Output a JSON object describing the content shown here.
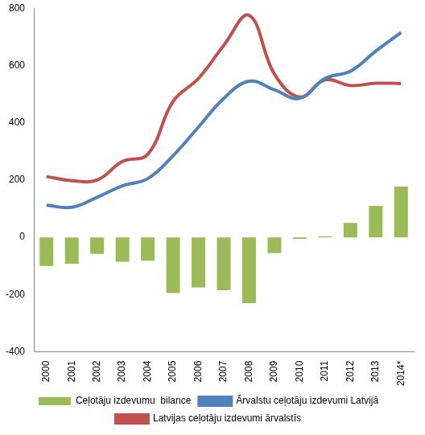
{
  "chart_data": {
    "type": "combo",
    "categories": [
      "2000",
      "2001",
      "2002",
      "2003",
      "2004",
      "2005",
      "2006",
      "2007",
      "2008",
      "2009",
      "2010",
      "2011",
      "2012",
      "2013",
      "2014*"
    ],
    "series": [
      {
        "name": "Ceļotāju izdevumu  bilance",
        "type": "bar",
        "color": "#9bbb59",
        "values": [
          -100,
          -92,
          -58,
          -85,
          -82,
          -195,
          -175,
          -185,
          -230,
          -55,
          -5,
          3,
          50,
          110,
          177
        ]
      },
      {
        "name": "Ārvalstu ceļotāju izdevumi Latvijā",
        "type": "line",
        "color": "#4f81bd",
        "marker": "none",
        "line_style": "smooth",
        "values": [
          112,
          105,
          140,
          180,
          205,
          285,
          385,
          485,
          545,
          515,
          485,
          555,
          580,
          650,
          715
        ]
      },
      {
        "name": "Latvijas ceļotāju izdevumi ārvalstīs",
        "type": "line",
        "color": "#c0504d",
        "marker": "none",
        "line_style": "smooth",
        "values": [
          212,
          198,
          200,
          265,
          290,
          475,
          555,
          670,
          775,
          570,
          490,
          550,
          530,
          538,
          537
        ]
      }
    ],
    "ylim": [
      -400,
      800
    ],
    "yticks": [
      -400,
      -200,
      0,
      200,
      400,
      600,
      800
    ],
    "grid": false,
    "legend": "bottom"
  }
}
